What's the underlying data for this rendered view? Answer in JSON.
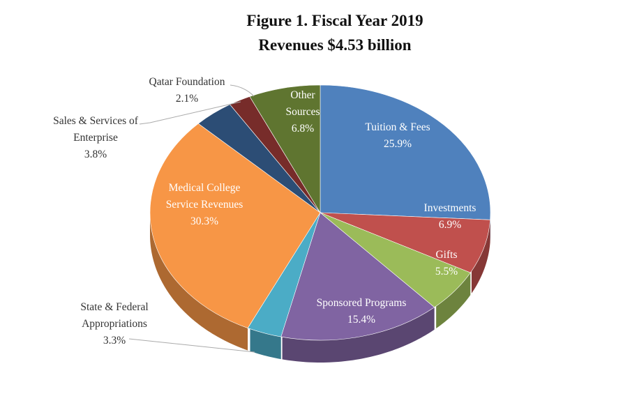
{
  "chart_data": {
    "type": "pie",
    "style": "3d",
    "title": "Figure 1. Fiscal Year 2019",
    "subtitle": "Revenues $4.53 billion",
    "slices": [
      {
        "label": "Tuition & Fees",
        "value": 25.9,
        "value_text": "25.9%",
        "color": "#4f81bd",
        "label_lines": [
          "Tuition & Fees"
        ]
      },
      {
        "label": "Investments",
        "value": 6.9,
        "value_text": "6.9%",
        "color": "#c0504d",
        "label_lines": [
          "Investments"
        ]
      },
      {
        "label": "Gifts",
        "value": 5.5,
        "value_text": "5.5%",
        "color": "#9bbb59",
        "label_lines": [
          "Gifts"
        ]
      },
      {
        "label": "Sponsored Programs",
        "value": 15.4,
        "value_text": "15.4%",
        "color": "#8064a2",
        "label_lines": [
          "Sponsored Programs"
        ]
      },
      {
        "label": "State & Federal Appropriations",
        "value": 3.3,
        "value_text": "3.3%",
        "color": "#4bacc6",
        "label_lines": [
          "State & Federal",
          "Appropriations"
        ]
      },
      {
        "label": "Medical College Service Revenues",
        "value": 30.3,
        "value_text": "30.3%",
        "color": "#f79646",
        "label_lines": [
          "Medical College",
          "Service Revenues"
        ]
      },
      {
        "label": "Sales & Services of Enterprise",
        "value": 3.8,
        "value_text": "3.8%",
        "color": "#2c4d75",
        "label_lines": [
          "Sales & Services of",
          "Enterprise"
        ]
      },
      {
        "label": "Qatar Foundation",
        "value": 2.1,
        "value_text": "2.1%",
        "color": "#772c2a",
        "label_lines": [
          "Qatar Foundation"
        ]
      },
      {
        "label": "Other Sources",
        "value": 6.8,
        "value_text": "6.8%",
        "color": "#5f7530",
        "label_lines": [
          "Other",
          "Sources"
        ]
      }
    ],
    "legend": "none"
  }
}
